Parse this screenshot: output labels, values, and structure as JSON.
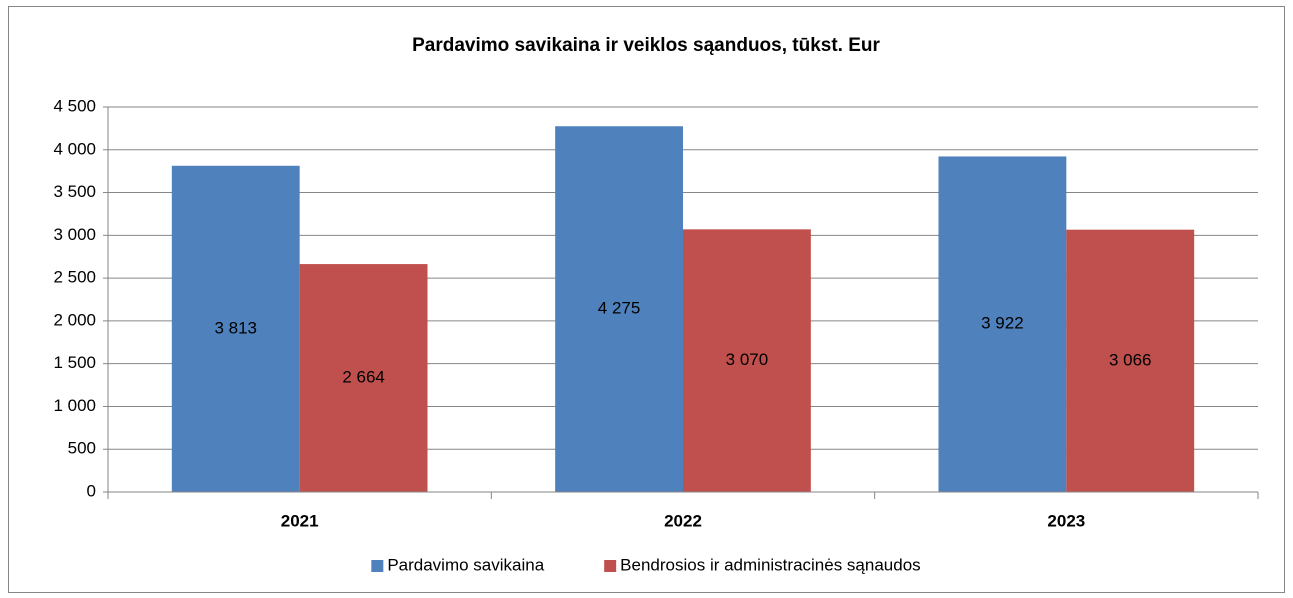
{
  "chart_data": {
    "type": "bar",
    "title": "Pardavimo savikaina ir veiklos sąanduos, tūkst. Eur",
    "categories": [
      "2021",
      "2022",
      "2023"
    ],
    "series": [
      {
        "name": "Pardavimo savikaina",
        "color": "#4f81bd",
        "values": [
          3813,
          4275,
          3922
        ],
        "value_labels": [
          "3 813",
          "4 275",
          "3 922"
        ]
      },
      {
        "name": "Bendrosios ir administracinės sąnaudos",
        "color": "#c0504d",
        "values": [
          2664,
          3070,
          3066
        ],
        "value_labels": [
          "2 664",
          "3 070",
          "3 066"
        ]
      }
    ],
    "ylim": [
      0,
      4500
    ],
    "yticks": [
      0,
      {
        "value": 500,
        "label": "500"
      },
      {
        "value": 1000,
        "label": "1 000"
      },
      {
        "value": 1500,
        "label": "1 500"
      },
      {
        "value": 2000,
        "label": "2 000"
      },
      {
        "value": 2500,
        "label": "2 500"
      },
      {
        "value": 3000,
        "label": "3 000"
      },
      {
        "value": 3500,
        "label": "3 500"
      },
      {
        "value": 4000,
        "label": "4 000"
      },
      {
        "value": 4500,
        "label": "4 500"
      }
    ],
    "grid": true,
    "legend": "bottom"
  }
}
